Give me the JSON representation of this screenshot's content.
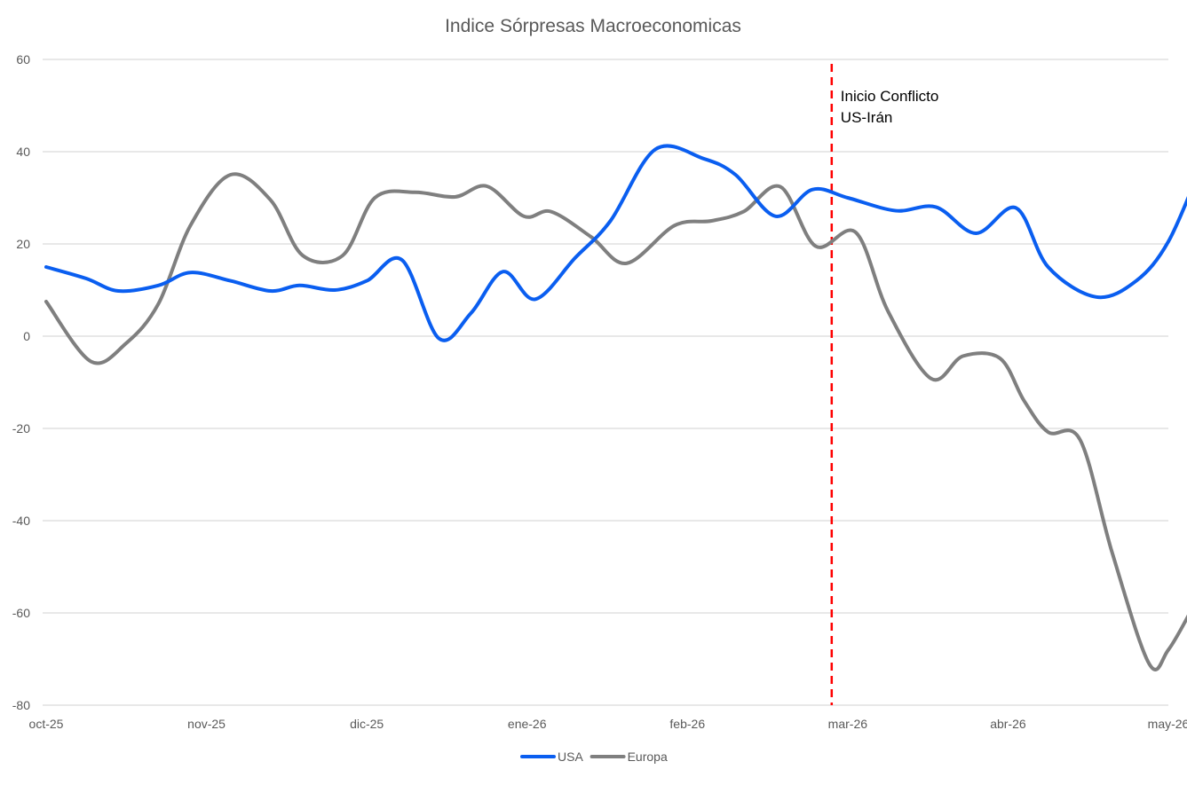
{
  "chart_data": {
    "type": "line",
    "title": "Indice Sórpresas Macroeconomicas",
    "xlabel": "",
    "ylabel": "",
    "x_tick_labels": [
      "oct-25",
      "nov-25",
      "dic-25",
      "ene-26",
      "feb-26",
      "mar-26",
      "abr-26",
      "may-26"
    ],
    "y_ticks": [
      60,
      40,
      20,
      0,
      -20,
      -40,
      -60,
      -80
    ],
    "ylim": [
      -80,
      60
    ],
    "xlim": [
      0,
      7
    ],
    "grid": true,
    "legend_position": "bottom",
    "series": [
      {
        "name": "USA",
        "color": "#0a5ef0",
        "points": [
          [
            0.0,
            15
          ],
          [
            0.25,
            12.5
          ],
          [
            0.45,
            9.8
          ],
          [
            0.7,
            11
          ],
          [
            0.9,
            13.8
          ],
          [
            1.15,
            12
          ],
          [
            1.4,
            9.8
          ],
          [
            1.58,
            11
          ],
          [
            1.8,
            10
          ],
          [
            2.0,
            12
          ],
          [
            2.22,
            16.5
          ],
          [
            2.45,
            -0.5
          ],
          [
            2.65,
            5
          ],
          [
            2.85,
            14
          ],
          [
            3.05,
            8
          ],
          [
            3.3,
            17
          ],
          [
            3.52,
            25
          ],
          [
            3.8,
            40.5
          ],
          [
            4.1,
            38.5
          ],
          [
            4.3,
            35
          ],
          [
            4.55,
            26
          ],
          [
            4.78,
            31.8
          ],
          [
            5.0,
            30
          ],
          [
            5.3,
            27.2
          ],
          [
            5.55,
            28
          ],
          [
            5.8,
            22.3
          ],
          [
            6.05,
            27.8
          ],
          [
            6.25,
            15
          ],
          [
            6.55,
            8.5
          ],
          [
            6.8,
            12
          ],
          [
            7.0,
            20.5
          ],
          [
            7.2,
            36.5
          ]
        ]
      },
      {
        "name": "Europa",
        "color": "#7f7f7f",
        "points": [
          [
            0.0,
            7.5
          ],
          [
            0.28,
            -5.5
          ],
          [
            0.5,
            -1.5
          ],
          [
            0.7,
            7
          ],
          [
            0.9,
            24
          ],
          [
            1.15,
            35
          ],
          [
            1.4,
            29.5
          ],
          [
            1.6,
            17.5
          ],
          [
            1.85,
            17.5
          ],
          [
            2.05,
            30
          ],
          [
            2.3,
            31.2
          ],
          [
            2.55,
            30.2
          ],
          [
            2.75,
            32.5
          ],
          [
            2.98,
            26
          ],
          [
            3.15,
            27
          ],
          [
            3.4,
            21.5
          ],
          [
            3.62,
            15.8
          ],
          [
            3.92,
            24
          ],
          [
            4.15,
            25
          ],
          [
            4.35,
            27
          ],
          [
            4.58,
            32.4
          ],
          [
            4.8,
            19.5
          ],
          [
            5.05,
            22.5
          ],
          [
            5.25,
            5.5
          ],
          [
            5.52,
            -9.2
          ],
          [
            5.72,
            -4.3
          ],
          [
            5.95,
            -4.8
          ],
          [
            6.1,
            -14
          ],
          [
            6.25,
            -20.8
          ],
          [
            6.45,
            -22.5
          ],
          [
            6.65,
            -47
          ],
          [
            6.88,
            -71
          ],
          [
            7.0,
            -68
          ],
          [
            7.15,
            -59
          ]
        ]
      }
    ],
    "annotations": [
      {
        "x": 4.9,
        "lines": [
          "Inicio Conflicto",
          "US-Irán"
        ],
        "style": "dashed-vertical",
        "color": "#ff0000"
      }
    ]
  }
}
